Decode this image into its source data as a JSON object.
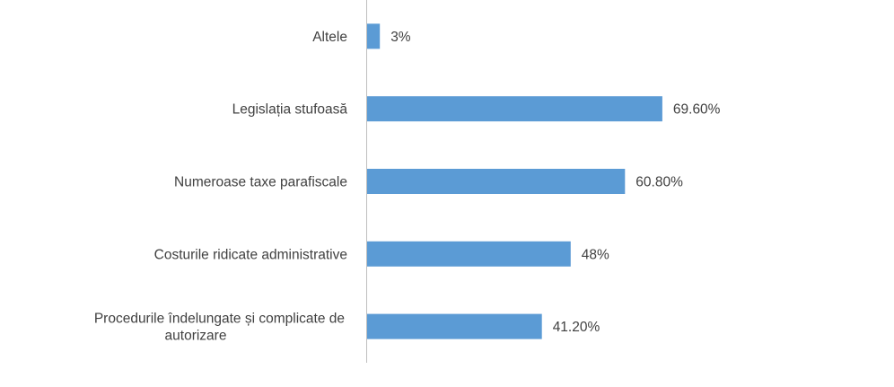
{
  "chart_data": {
    "type": "bar",
    "orientation": "horizontal",
    "categories": [
      "Procedurile îndelungate și complicate de autorizare",
      "Costurile ridicate administrative",
      "Numeroase taxe parafiscale",
      "Legislația stufoasă",
      "Altele"
    ],
    "category_lines": [
      [
        "Procedurile îndelungate și complicate de",
        "autorizare"
      ],
      [
        "Costurile ridicate administrative"
      ],
      [
        "Numeroase taxe parafiscale"
      ],
      [
        "Legislația stufoasă"
      ],
      [
        "Altele"
      ]
    ],
    "values": [
      41.2,
      48,
      60.8,
      69.6,
      3
    ],
    "data_labels": [
      "41.20%",
      "48%",
      "60.80%",
      "69.60%",
      "3%"
    ],
    "title": "",
    "xlabel": "",
    "ylabel": "",
    "xlim": [
      0,
      100
    ],
    "grid": false,
    "legend": "none",
    "colors": {
      "bar": "#5B9BD5",
      "axis": "#BFBFBF",
      "text": "#404040"
    }
  }
}
